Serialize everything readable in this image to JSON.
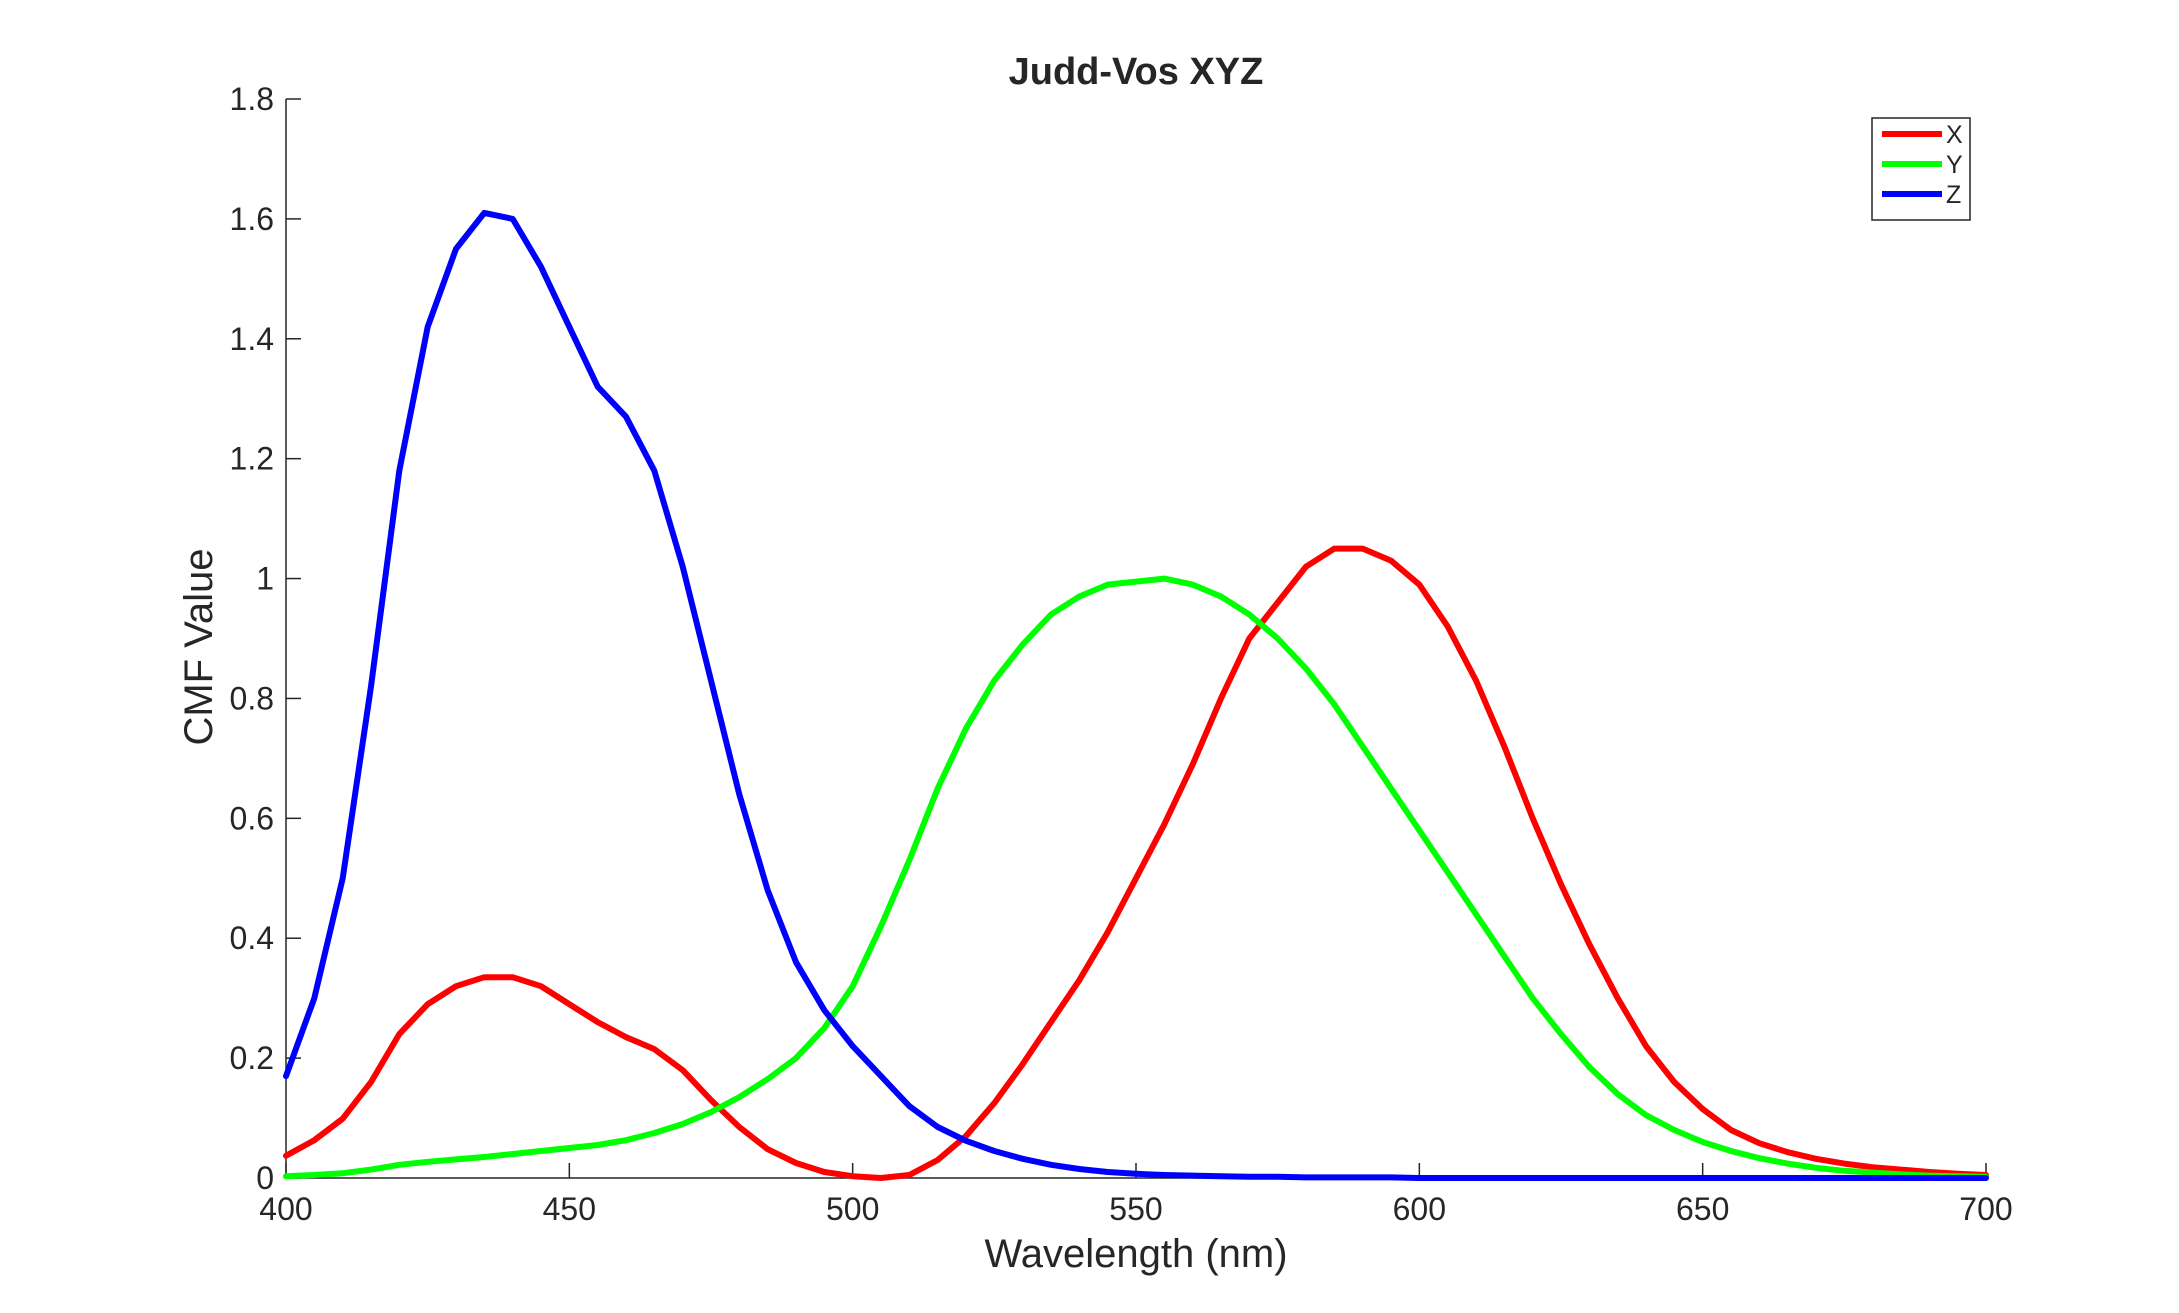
{
  "chart_data": {
    "type": "line",
    "title": "Judd-Vos XYZ",
    "xlabel": "Wavelength (nm)",
    "ylabel": "CMF Value",
    "xlim": [
      400,
      700
    ],
    "ylim": [
      0,
      1.8
    ],
    "xticks": [
      400,
      450,
      500,
      550,
      600,
      650,
      700
    ],
    "yticks": [
      0,
      0.2,
      0.4,
      0.6,
      0.8,
      1,
      1.2,
      1.4,
      1.6,
      1.8
    ],
    "xtick_labels": [
      "400",
      "450",
      "500",
      "550",
      "600",
      "650",
      "700"
    ],
    "ytick_labels": [
      "0",
      "0.2",
      "0.4",
      "0.6",
      "0.8",
      "1",
      "1.2",
      "1.4",
      "1.6",
      "1.8"
    ],
    "grid": false,
    "legend_position": "top-right",
    "x": [
      400,
      405,
      410,
      415,
      420,
      425,
      430,
      435,
      440,
      445,
      450,
      455,
      460,
      465,
      470,
      475,
      480,
      485,
      490,
      495,
      500,
      505,
      510,
      515,
      520,
      525,
      530,
      535,
      540,
      545,
      550,
      555,
      560,
      565,
      570,
      575,
      580,
      585,
      590,
      595,
      600,
      605,
      610,
      615,
      620,
      625,
      630,
      635,
      640,
      645,
      650,
      655,
      660,
      665,
      670,
      675,
      680,
      685,
      690,
      695,
      700
    ],
    "series": [
      {
        "name": "X",
        "color": "#ff0000",
        "values": [
          0.037,
          0.063,
          0.099,
          0.16,
          0.24,
          0.29,
          0.32,
          0.335,
          0.335,
          0.32,
          0.29,
          0.26,
          0.235,
          0.215,
          0.18,
          0.13,
          0.085,
          0.048,
          0.025,
          0.01,
          0.003,
          0.0,
          0.005,
          0.03,
          0.07,
          0.125,
          0.19,
          0.26,
          0.33,
          0.41,
          0.5,
          0.59,
          0.69,
          0.8,
          0.9,
          0.96,
          1.02,
          1.05,
          1.05,
          1.03,
          0.99,
          0.92,
          0.83,
          0.72,
          0.6,
          0.49,
          0.39,
          0.3,
          0.22,
          0.16,
          0.115,
          0.08,
          0.058,
          0.043,
          0.032,
          0.024,
          0.018,
          0.014,
          0.01,
          0.007,
          0.005
        ]
      },
      {
        "name": "Y",
        "color": "#00ff00",
        "values": [
          0.003,
          0.005,
          0.008,
          0.014,
          0.022,
          0.027,
          0.031,
          0.035,
          0.04,
          0.045,
          0.05,
          0.055,
          0.063,
          0.075,
          0.09,
          0.11,
          0.135,
          0.165,
          0.2,
          0.25,
          0.32,
          0.42,
          0.53,
          0.65,
          0.75,
          0.83,
          0.89,
          0.94,
          0.97,
          0.99,
          0.995,
          1.0,
          0.99,
          0.97,
          0.94,
          0.9,
          0.85,
          0.79,
          0.72,
          0.65,
          0.58,
          0.51,
          0.44,
          0.37,
          0.3,
          0.24,
          0.185,
          0.14,
          0.105,
          0.08,
          0.06,
          0.045,
          0.033,
          0.024,
          0.017,
          0.012,
          0.009,
          0.006,
          0.004,
          0.003,
          0.002
        ]
      },
      {
        "name": "Z",
        "color": "#0000ff",
        "values": [
          0.17,
          0.3,
          0.5,
          0.82,
          1.18,
          1.42,
          1.55,
          1.61,
          1.6,
          1.52,
          1.42,
          1.32,
          1.27,
          1.18,
          1.02,
          0.83,
          0.64,
          0.48,
          0.36,
          0.28,
          0.22,
          0.17,
          0.12,
          0.085,
          0.062,
          0.045,
          0.032,
          0.022,
          0.015,
          0.01,
          0.007,
          0.005,
          0.004,
          0.003,
          0.002,
          0.002,
          0.001,
          0.001,
          0.001,
          0.001,
          0.0,
          0.0,
          0.0,
          0.0,
          0.0,
          0.0,
          0.0,
          0.0,
          0.0,
          0.0,
          0.0,
          0.0,
          0.0,
          0.0,
          0.0,
          0.0,
          0.0,
          0.0,
          0.0,
          0.0,
          0.0
        ]
      }
    ]
  }
}
